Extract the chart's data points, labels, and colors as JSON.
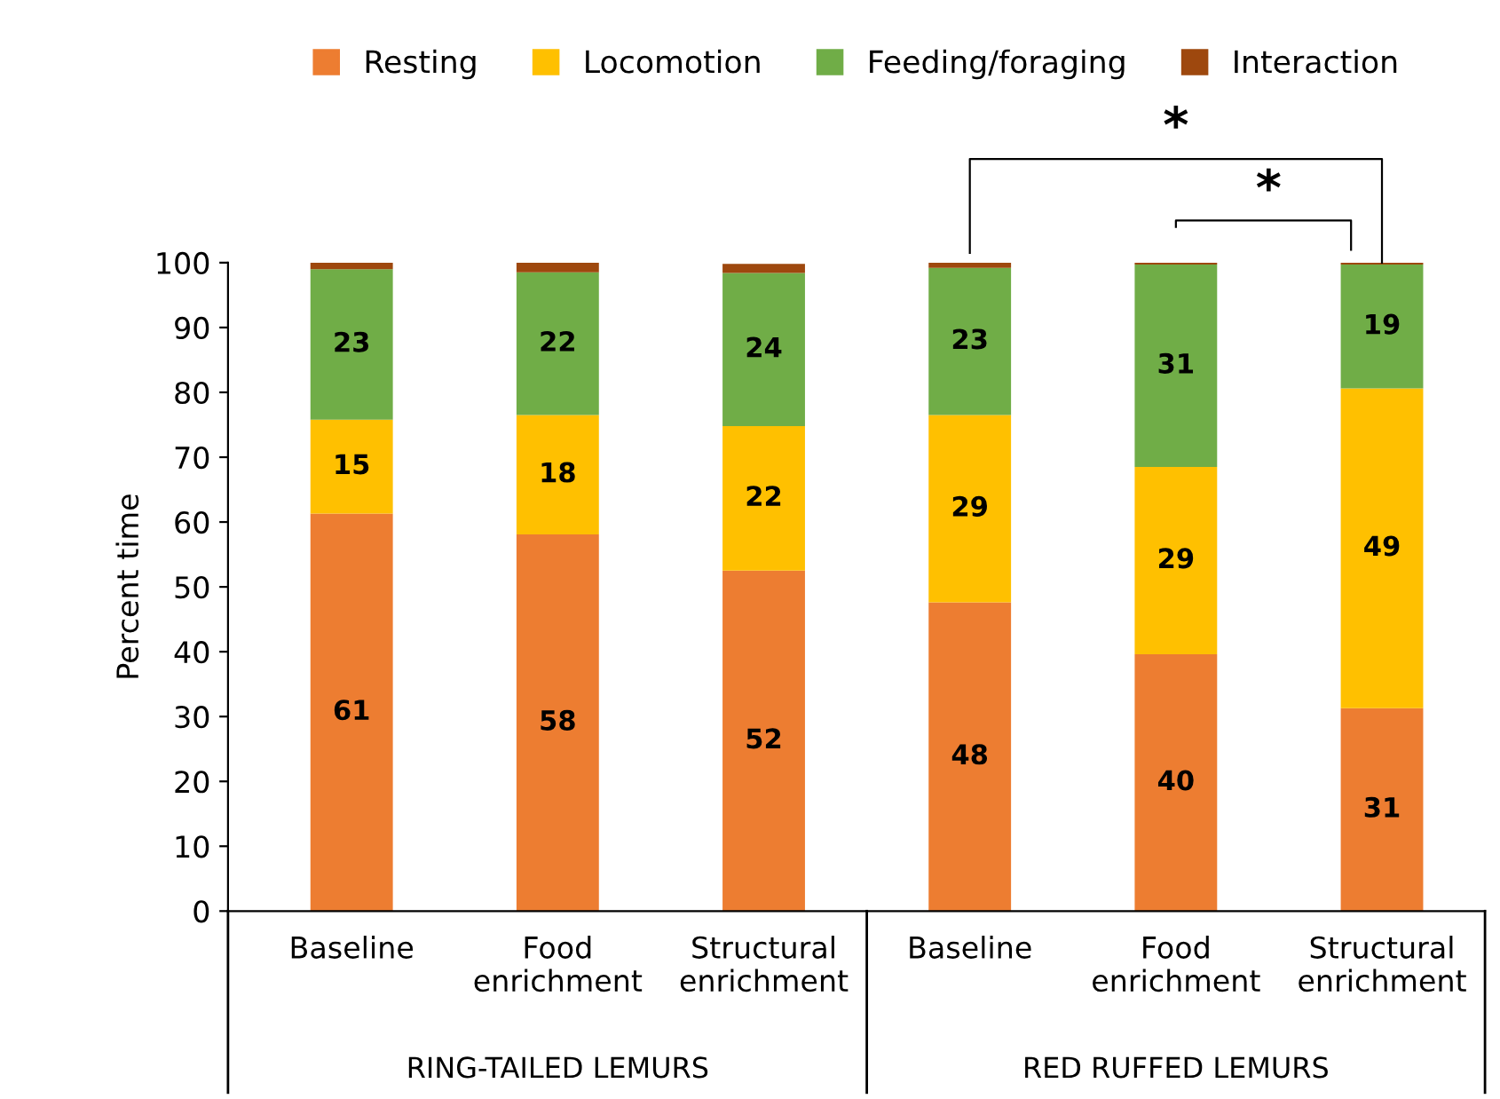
{
  "chart_data": {
    "type": "bar",
    "stacked": true,
    "ylabel": "Percent time",
    "categories": [
      "Baseline",
      "Food\nenrichment",
      "Structural\nenrichment",
      "Baseline",
      "Food\nenrichment",
      "Structural\nenrichment"
    ],
    "series": [
      {
        "name": "Resting",
        "color": "#ed7d31",
        "values": [
          61.3,
          58.1,
          52.5,
          47.6,
          39.6,
          31.3
        ],
        "value_labels": [
          "61",
          "58",
          "52",
          "48",
          "40",
          "31"
        ]
      },
      {
        "name": "Locomotion",
        "color": "#ffc000",
        "values": [
          14.5,
          18.4,
          22.3,
          28.9,
          28.9,
          49.3
        ],
        "value_labels": [
          "15",
          "18",
          "22",
          "29",
          "29",
          "49"
        ]
      },
      {
        "name": "Feeding/foraging",
        "color": "#70ad47",
        "values": [
          23.2,
          22.0,
          23.6,
          22.7,
          31.2,
          19.1
        ],
        "value_labels": [
          "23",
          "22",
          "24",
          "23",
          "31",
          "19"
        ]
      },
      {
        "name": "Interaction",
        "color": "#9e480e",
        "values": [
          1.0,
          1.5,
          1.4,
          0.8,
          0.3,
          0.3
        ],
        "value_labels": [
          null,
          null,
          null,
          null,
          null,
          null
        ]
      }
    ],
    "ylim": [
      0,
      100
    ],
    "yticks": [
      0,
      10,
      20,
      30,
      40,
      50,
      60,
      70,
      80,
      90,
      100
    ],
    "grid": false,
    "legend": "top",
    "annotations": [
      "*",
      "*",
      "RING-TAILED LEMURS",
      "RED RUFFED LEMURS"
    ]
  }
}
